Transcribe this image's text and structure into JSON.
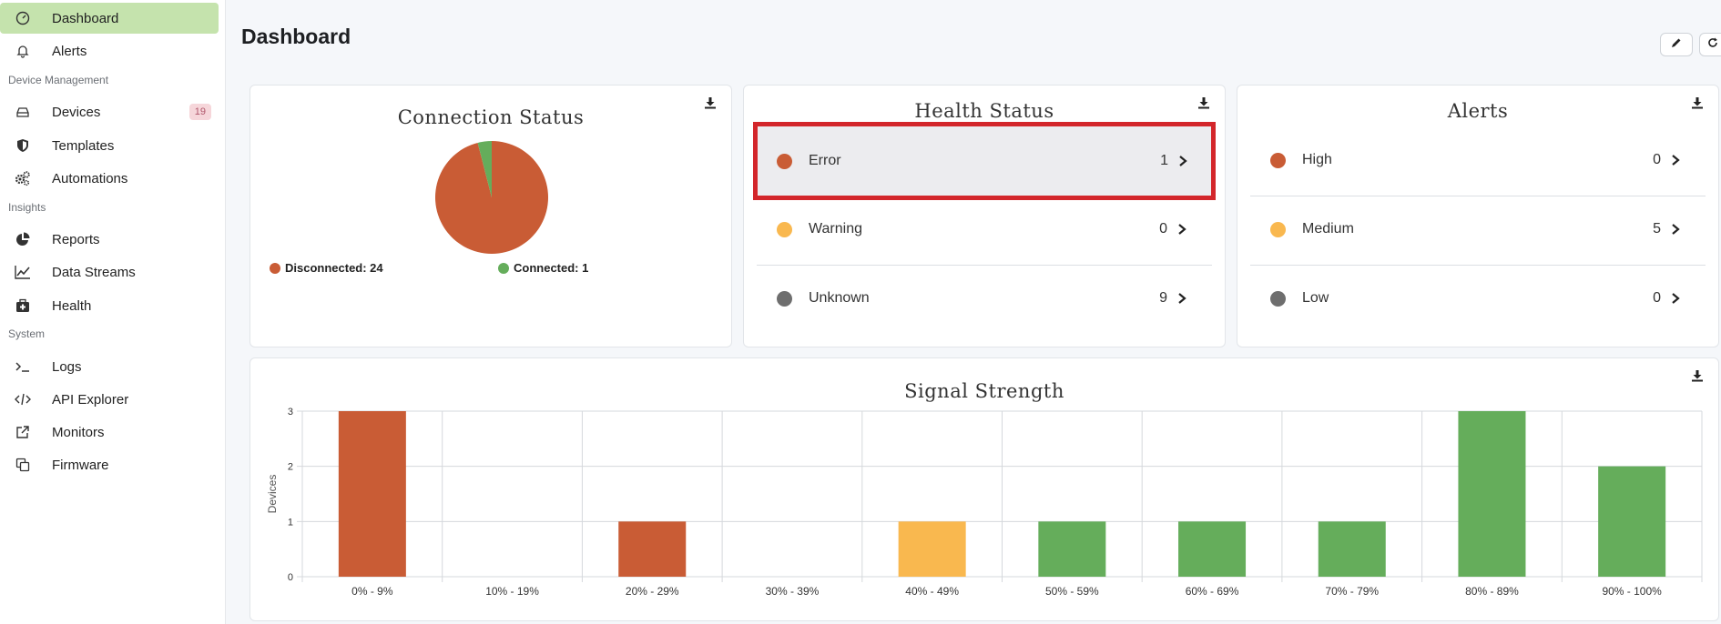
{
  "sidebar": {
    "items": [
      {
        "label": "Dashboard",
        "icon": "dashboard-icon"
      },
      {
        "label": "Alerts",
        "icon": "bell-icon"
      },
      {
        "label": "Devices",
        "icon": "devices-icon",
        "badge": "19"
      },
      {
        "label": "Templates",
        "icon": "shield-icon"
      },
      {
        "label": "Automations",
        "icon": "gears-icon"
      },
      {
        "label": "Reports",
        "icon": "pie-chart-icon"
      },
      {
        "label": "Data Streams",
        "icon": "line-chart-icon"
      },
      {
        "label": "Health",
        "icon": "medkit-icon"
      },
      {
        "label": "Logs",
        "icon": "terminal-icon"
      },
      {
        "label": "API Explorer",
        "icon": "code-icon"
      },
      {
        "label": "Monitors",
        "icon": "external-link-icon"
      },
      {
        "label": "Firmware",
        "icon": "copy-icon"
      }
    ],
    "sections": [
      "Device Management",
      "Insights",
      "System"
    ]
  },
  "page": {
    "title": "Dashboard"
  },
  "connection": {
    "title": "Connection Status",
    "legend": [
      {
        "label": "Disconnected: 24",
        "color": "#c95c35"
      },
      {
        "label": "Connected: 1",
        "color": "#65ad5b"
      }
    ]
  },
  "health": {
    "title": "Health Status",
    "rows": [
      {
        "name": "Error",
        "count": "1",
        "color": "#c95c35"
      },
      {
        "name": "Warning",
        "count": "0",
        "color": "#f9b84f"
      },
      {
        "name": "Unknown",
        "count": "9",
        "color": "#6e6e6e"
      }
    ]
  },
  "alerts": {
    "title": "Alerts",
    "rows": [
      {
        "name": "High",
        "count": "0",
        "color": "#c95c35"
      },
      {
        "name": "Medium",
        "count": "5",
        "color": "#f9b84f"
      },
      {
        "name": "Low",
        "count": "0",
        "color": "#6e6e6e"
      }
    ]
  },
  "signal": {
    "title": "Signal Strength"
  },
  "chart_data": [
    {
      "type": "pie",
      "title": "Connection Status",
      "categories": [
        "Disconnected",
        "Connected"
      ],
      "values": [
        24,
        1
      ],
      "colors": [
        "#c95c35",
        "#65ad5b"
      ]
    },
    {
      "type": "bar",
      "title": "Signal Strength",
      "xlabel": "",
      "ylabel": "Devices",
      "ylim": [
        0,
        3
      ],
      "yticks": [
        "0",
        "1",
        "2",
        "3"
      ],
      "categories": [
        "0% - 9%",
        "10% - 19%",
        "20% - 29%",
        "30% - 39%",
        "40% - 49%",
        "50% - 59%",
        "60% - 69%",
        "70% - 79%",
        "80% - 89%",
        "90% - 100%"
      ],
      "values": [
        3,
        0,
        1,
        0,
        1,
        1,
        1,
        1,
        3,
        2
      ],
      "colors": [
        "#c95c35",
        "#c95c35",
        "#c95c35",
        "#c95c35",
        "#f9b84f",
        "#65ad5b",
        "#65ad5b",
        "#65ad5b",
        "#65ad5b",
        "#65ad5b"
      ],
      "grid": true
    }
  ]
}
